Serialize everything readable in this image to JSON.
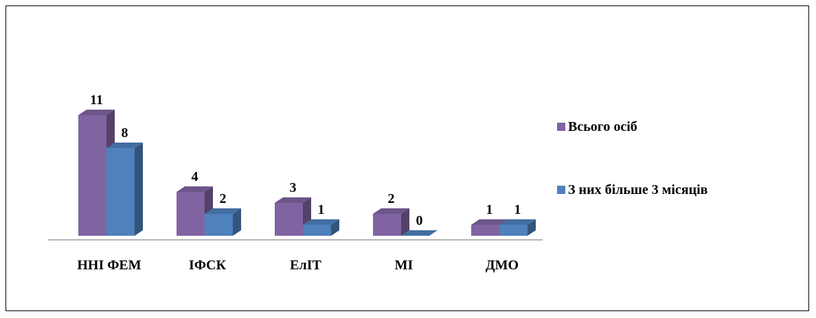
{
  "chart_data": {
    "type": "bar",
    "variant": "3d-clustered",
    "categories": [
      "ННІ ФЕМ",
      "ІФСК",
      "ЕлІТ",
      "МІ",
      "ДМО"
    ],
    "series": [
      {
        "name": "Всього осіб",
        "values": [
          11,
          4,
          3,
          2,
          1
        ],
        "color": "#8064A2"
      },
      {
        "name": "З них більше 3 місяців",
        "values": [
          8,
          2,
          1,
          0,
          1
        ],
        "color": "#4F81BD"
      }
    ],
    "title": "",
    "xlabel": "",
    "ylabel": "",
    "ylim": [
      0,
      11
    ],
    "grid": false,
    "legend": "right"
  }
}
